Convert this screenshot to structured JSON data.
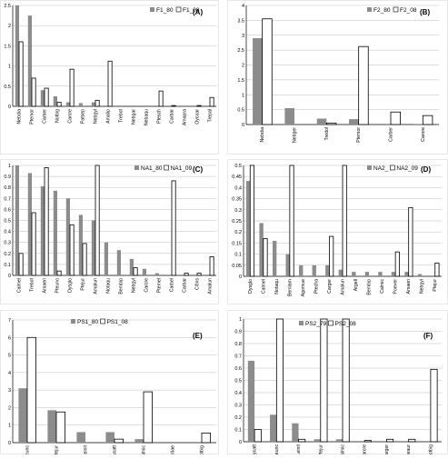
{
  "chart_data": [
    {
      "type": "bar",
      "panel_label": "(A)",
      "categories": [
        "Nebdia",
        "Ptemor",
        "Carber",
        "Notbig",
        "Carcre",
        "Patsep",
        "Nebgyl",
        "Amalip",
        "Trebot",
        "Nebgar",
        "Nebaqu",
        "Ptesch",
        "Carbar",
        "Amapra",
        "Oycoar",
        "Trepal"
      ],
      "series": [
        {
          "name": "F1_80",
          "values": [
            2.5,
            2.25,
            0.4,
            0.25,
            0.1,
            0.08,
            0.1,
            0.02,
            0.02,
            0.02,
            0.02,
            0.0,
            0.0,
            0.0,
            0.0,
            0.0
          ]
        },
        {
          "name": "F1_08",
          "values": [
            1.6,
            0.7,
            0.45,
            0.1,
            0.92,
            0.0,
            0.15,
            1.12,
            0.0,
            0.0,
            0.0,
            0.38,
            0.02,
            0.0,
            0.02,
            0.22
          ]
        }
      ],
      "ylim": [
        0,
        2.5
      ],
      "yticks": [
        "0",
        "0.5",
        "1",
        "1.5",
        "2",
        "2.5"
      ],
      "legend": "top-right"
    },
    {
      "type": "bar",
      "panel_label": "(B)",
      "categories": [
        "Nebdia",
        "Nebger",
        "Tredol",
        "Ptemor",
        "Carber",
        "Carore"
      ],
      "series": [
        {
          "name": "F2_80",
          "values": [
            2.9,
            0.55,
            0.2,
            0.18,
            0.0,
            0.02
          ]
        },
        {
          "name": "F2_08",
          "values": [
            3.55,
            0.0,
            0.05,
            2.62,
            0.42,
            0.3
          ]
        }
      ],
      "ylim": [
        0,
        4
      ],
      "yticks": [
        "0",
        "0.5",
        "1",
        "1.5",
        "2",
        "2.5",
        "3",
        "3.5",
        "4"
      ],
      "legend": "top-right"
    },
    {
      "type": "bar",
      "panel_label": "(C)",
      "categories": [
        "Calmel",
        "Trebot",
        "Amaeri",
        "Pteuno",
        "Dysglo",
        "Ptejur",
        "Amalun",
        "Notaqu",
        "Bembip",
        "Nebgyl",
        "Carcre",
        "Ptemel",
        "Carbel",
        "Carbar",
        "Cifins",
        "Amalun"
      ],
      "series": [
        {
          "name": "NA1_80",
          "values": [
            1.0,
            0.93,
            0.81,
            0.77,
            0.7,
            0.55,
            0.5,
            0.3,
            0.23,
            0.15,
            0.06,
            0.02,
            0.0,
            0.0,
            0.0,
            0.0
          ]
        },
        {
          "name": "NA1_09",
          "values": [
            0.2,
            0.57,
            0.98,
            0.04,
            0.46,
            0.29,
            1.0,
            0.0,
            0.0,
            0.07,
            0.0,
            0.0,
            0.86,
            0.02,
            0.02,
            0.17
          ]
        }
      ],
      "ylim": [
        0,
        1
      ],
      "yticks": [
        "0",
        "0.1",
        "0.2",
        "0.3",
        "0.4",
        "0.5",
        "0.6",
        "0.7",
        "0.8",
        "0.9",
        "1"
      ],
      "legend": "top-right"
    },
    {
      "type": "bar",
      "panel_label": "(D)",
      "categories": [
        "Dysglo",
        "Calmel",
        "Notaqu",
        "Bemlam",
        "Agomue",
        "Ptecha",
        "Carger",
        "Amalun",
        "Argell",
        "Bembip",
        "Calmic",
        "Poever",
        "Amaeri",
        "Nebgyl",
        "Ptejur"
      ],
      "series": [
        {
          "name": "NA2_",
          "values": [
            0.43,
            0.24,
            0.16,
            0.1,
            0.05,
            0.05,
            0.05,
            0.03,
            0.02,
            0.02,
            0.02,
            0.02,
            0.02,
            0.01,
            0.0
          ]
        },
        {
          "name": "NA2_09",
          "values": [
            0.5,
            0.17,
            0.0,
            0.5,
            0.0,
            0.0,
            0.18,
            0.5,
            0.0,
            0.0,
            0.0,
            0.11,
            0.31,
            0.0,
            0.06
          ]
        }
      ],
      "ylim": [
        0,
        0.5
      ],
      "yticks": [
        "0",
        "0.05",
        "0.1",
        "0.15",
        "0.2",
        "0.25",
        "0.3",
        "0.35",
        "0.4",
        "0.45",
        "0.5"
      ],
      "legend": "top-right"
    },
    {
      "type": "bar",
      "panel_label": "(E)",
      "categories": [
        "Pteunc",
        "Ptejur",
        "Leinit",
        "Cycatt",
        "Calmic",
        "Trilae",
        "Notbig"
      ],
      "series": [
        {
          "name": "PS1_80",
          "values": [
            3.1,
            1.85,
            0.6,
            0.6,
            0.2,
            0.0,
            0.0
          ]
        },
        {
          "name": "PS1_08",
          "values": [
            6.0,
            1.75,
            0.0,
            0.2,
            2.9,
            0.0,
            0.55
          ]
        }
      ],
      "ylim": [
        0,
        7
      ],
      "yticks": [
        "0",
        "1",
        "2",
        "3",
        "4",
        "5",
        "6",
        "7"
      ],
      "legend": "top-center"
    },
    {
      "type": "bar",
      "panel_label": "(F)",
      "categories": [
        "Cycatt",
        "Pteunc",
        "Leinit",
        "Ptejur",
        "Calmic",
        "Carcre",
        "Carger",
        "Caraur",
        "Notbig"
      ],
      "series": [
        {
          "name": "PS2_79",
          "values": [
            0.66,
            0.22,
            0.15,
            0.02,
            0.02,
            0.0,
            0.0,
            0.0,
            0.0
          ]
        },
        {
          "name": "PS2_08",
          "values": [
            0.1,
            1.0,
            0.02,
            1.0,
            1.0,
            0.01,
            0.02,
            0.02,
            0.59
          ]
        }
      ],
      "ylim": [
        0,
        1
      ],
      "yticks": [
        "0",
        "0.1",
        "0.2",
        "0.3",
        "0.4",
        "0.5",
        "0.6",
        "0.7",
        "0.8",
        "0.9",
        "1"
      ],
      "legend": "top-center"
    }
  ],
  "colors": {
    "series_a": "#8c8c8c",
    "series_b": "#ffffff",
    "outline": "#000000",
    "axis": "#000000",
    "grid": "#bdbdbd"
  }
}
